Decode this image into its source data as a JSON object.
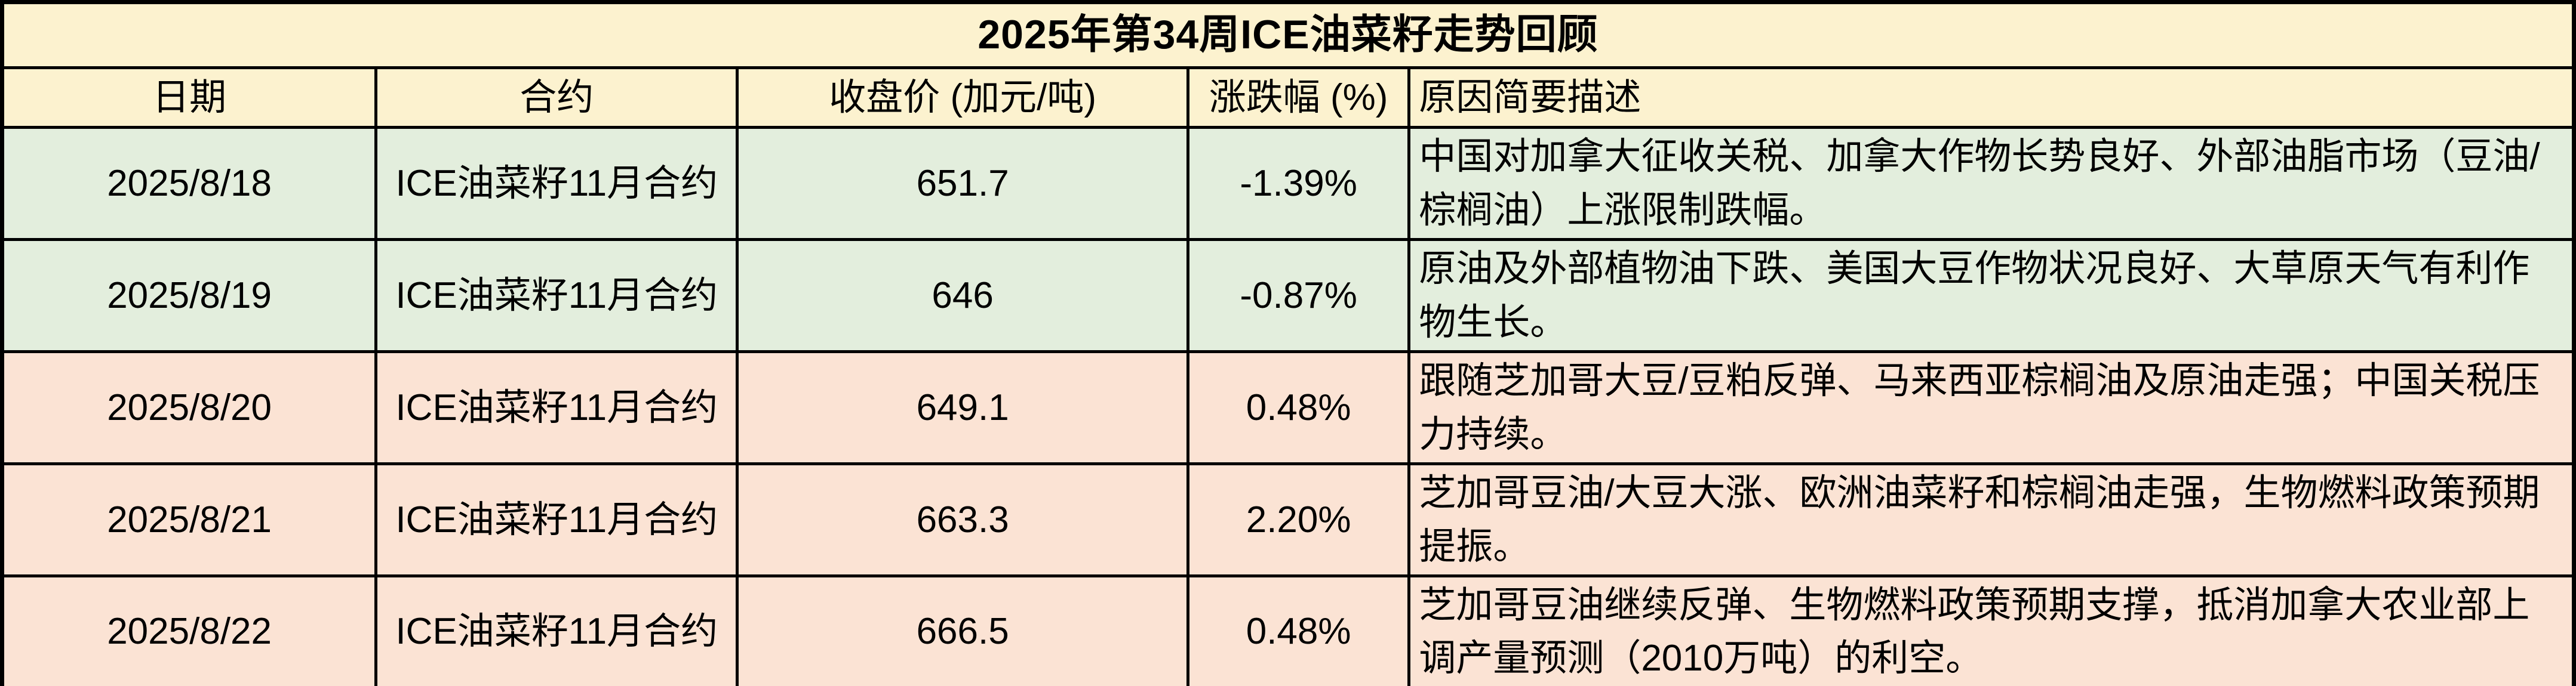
{
  "title": "2025年第34周ICE油菜籽走势回顾",
  "table": {
    "headers": {
      "date": "日期",
      "contract": "合约",
      "close": "收盘价 (加元/吨)",
      "change": "涨跌幅 (%)",
      "reason": "原因简要描述"
    },
    "rows": [
      {
        "date": "2025/8/18",
        "contract": "ICE油菜籽11月合约",
        "close": "651.7",
        "change": "-1.39%",
        "reason": "中国对加拿大征收关税、加拿大作物长势良好、外部油脂市场（豆油/棕榈油）上涨限制跌幅。",
        "tone": "down"
      },
      {
        "date": "2025/8/19",
        "contract": "ICE油菜籽11月合约",
        "close": "646",
        "change": "-0.87%",
        "reason": "原油及外部植物油下跌、美国大豆作物状况良好、大草原天气有利作物生长。",
        "tone": "down"
      },
      {
        "date": "2025/8/20",
        "contract": "ICE油菜籽11月合约",
        "close": "649.1",
        "change": "0.48%",
        "reason": "跟随芝加哥大豆/豆粕反弹、马来西亚棕榈油及原油走强；中国关税压力持续。",
        "tone": "up"
      },
      {
        "date": "2025/8/21",
        "contract": "ICE油菜籽11月合约",
        "close": "663.3",
        "change": "2.20%",
        "reason": "芝加哥豆油/大豆大涨、欧洲油菜籽和棕榈油走强，生物燃料政策预期提振。",
        "tone": "up"
      },
      {
        "date": "2025/8/22",
        "contract": "ICE油菜籽11月合约",
        "close": "666.5",
        "change": "0.48%",
        "reason": "芝加哥豆油继续反弹、生物燃料政策预期支撑，抵消加拿大农业部上调产量预测（2010万吨）的利空。",
        "tone": "up"
      }
    ]
  },
  "colors": {
    "header_bg": "#FCF2CF",
    "down_row_bg": "#E3EEDD",
    "up_row_bg": "#FBE3D4",
    "border": "#000000",
    "text": "#000000"
  }
}
